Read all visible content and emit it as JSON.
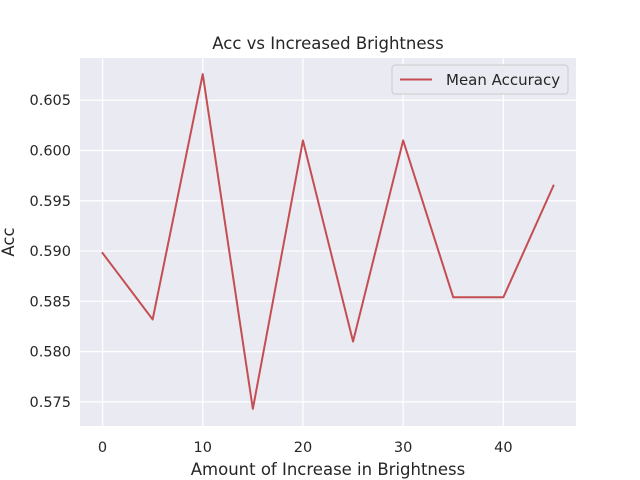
{
  "chart_data": {
    "type": "line",
    "title": "Acc vs Increased Brightness",
    "xlabel": "Amount of Increase in Brightness",
    "ylabel": "Acc",
    "x": [
      0,
      5,
      10,
      15,
      20,
      25,
      30,
      35,
      40,
      45
    ],
    "series": [
      {
        "name": "Mean Accuracy",
        "color": "#c44e52",
        "values": [
          0.5898,
          0.5832,
          0.6076,
          0.5743,
          0.601,
          0.581,
          0.601,
          0.5854,
          0.5854,
          0.5965
        ]
      }
    ],
    "xticks": [
      0,
      10,
      20,
      30,
      40
    ],
    "xtick_labels": [
      "0",
      "10",
      "20",
      "30",
      "40"
    ],
    "yticks": [
      0.575,
      0.58,
      0.585,
      0.59,
      0.595,
      0.6,
      0.605
    ],
    "ytick_labels": [
      "0.575",
      "0.580",
      "0.585",
      "0.590",
      "0.595",
      "0.600",
      "0.605"
    ],
    "xlim": [
      -2.25,
      47.25
    ],
    "ylim": [
      0.5726,
      0.6092
    ],
    "grid": true,
    "legend_position": "top-right",
    "background_color": "#eaeaf2"
  }
}
